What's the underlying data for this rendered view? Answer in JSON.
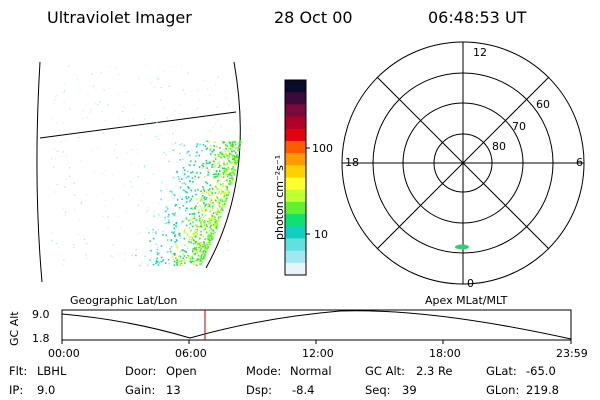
{
  "header": {
    "instrument": "Ultraviolet Imager",
    "date": "28 Oct 00",
    "time": "06:48:53 UT"
  },
  "colorbar": {
    "unit_label": "photon cm⁻²s⁻¹",
    "ticks": [
      "100",
      "10"
    ],
    "colors": [
      "#0a0a2a",
      "#3a0a3a",
      "#7a0a3a",
      "#b0002a",
      "#e00010",
      "#ff5a00",
      "#ff9a00",
      "#ffd000",
      "#ffff30",
      "#c0ff30",
      "#60f030",
      "#10e070",
      "#10d0c0",
      "#60e0e0",
      "#a0e8f0",
      "#e8f4f8"
    ]
  },
  "polar_plot": {
    "mlt_labels": {
      "top": "12",
      "left": "18",
      "right": "6",
      "bottom": "0"
    },
    "lat_labels": [
      "60",
      "70",
      "80"
    ]
  },
  "panel_titles": {
    "left": "Geographic Lat/Lon",
    "right": "Apex MLat/MLT"
  },
  "gc_alt_plot": {
    "ylabel": "GC Alt",
    "ymax": "9.0",
    "ymin": "1.8",
    "x_ticks": [
      "00:00",
      "06:00",
      "12:00",
      "18:00",
      "23:59"
    ],
    "marker_color": "#b00000"
  },
  "info": {
    "flt": {
      "label": "Flt:",
      "value": "LBHL"
    },
    "ip": {
      "label": "IP:",
      "value": "9.0"
    },
    "door": {
      "label": "Door:",
      "value": "Open"
    },
    "gain": {
      "label": "Gain:",
      "value": "13"
    },
    "mode": {
      "label": "Mode:",
      "value": "Normal"
    },
    "dsp": {
      "label": "Dsp:",
      "value": "-8.4"
    },
    "gcalt": {
      "label": "GC Alt:",
      "value": "2.3 Re"
    },
    "seq": {
      "label": "Seq:",
      "value": "39"
    },
    "glat": {
      "label": "GLat:",
      "value": "-65.0"
    },
    "glon": {
      "label": "GLon:",
      "value": "219.8"
    }
  }
}
